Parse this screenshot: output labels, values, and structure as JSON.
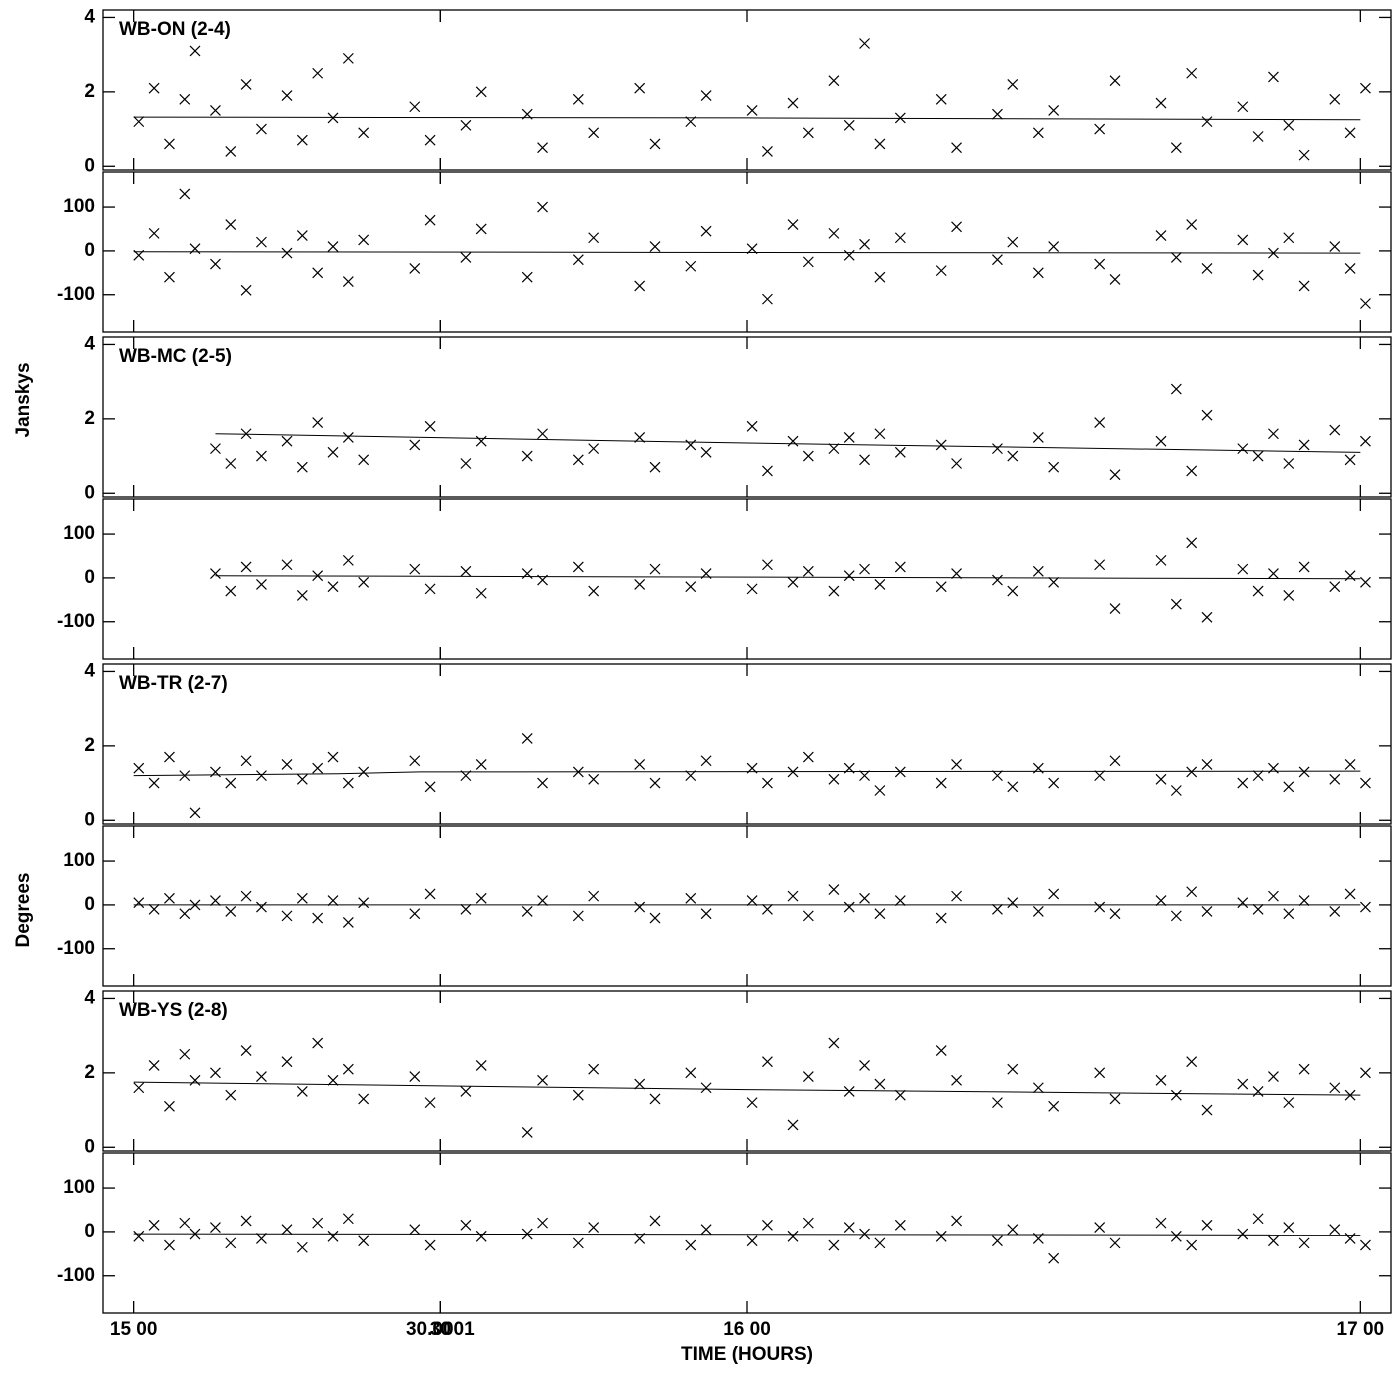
{
  "x_axis": {
    "xlim": [
      -3,
      123
    ],
    "xticks": [
      {
        "value": 0,
        "label": "15 00"
      },
      30,
      {
        "value": 60,
        "label": "16 00"
      },
      30.0001,
      {
        "value": 120,
        "label": "17 00"
      }
    ],
    "label": "TIME (HOURS)"
  },
  "ylabel_amplitude": "Janskys",
  "ylabel_phase": "Degrees",
  "chart_data": [
    {
      "type": "scatter",
      "label": "WB-ON (2-4)",
      "x": [
        0.5,
        2,
        3.5,
        5,
        6,
        8,
        9.5,
        11,
        12.5,
        15,
        16.5,
        18,
        19.5,
        21,
        22.5,
        27.5,
        29,
        32.5,
        34,
        38.5,
        40,
        43.5,
        45,
        49.5,
        51,
        54.5,
        56,
        60.5,
        62,
        64.5,
        66,
        68.5,
        70,
        71.5,
        73,
        75,
        79,
        80.5,
        84.5,
        86,
        88.5,
        90,
        94.5,
        96,
        100.5,
        102,
        103.5,
        105,
        108.5,
        110,
        111.5,
        113,
        114.5,
        117.5,
        119,
        120.5
      ],
      "amplitude": {
        "ylim": [
          -0.1,
          4.2
        ],
        "yticks": [
          0,
          2,
          4
        ],
        "values": [
          1.2,
          2.1,
          0.6,
          1.8,
          3.1,
          1.5,
          0.4,
          2.2,
          1.0,
          1.9,
          0.7,
          2.5,
          1.3,
          2.9,
          0.9,
          1.6,
          0.7,
          1.1,
          2.0,
          1.4,
          0.5,
          1.8,
          0.9,
          2.1,
          0.6,
          1.2,
          1.9,
          1.5,
          0.4,
          1.7,
          0.9,
          2.3,
          1.1,
          3.3,
          0.6,
          1.3,
          1.8,
          0.5,
          1.4,
          2.2,
          0.9,
          1.5,
          1.0,
          2.3,
          1.7,
          0.5,
          2.5,
          1.2,
          1.6,
          0.8,
          2.4,
          1.1,
          0.3,
          1.8,
          0.9,
          2.1
        ],
        "fit_x": [
          0,
          60,
          120
        ],
        "fit_values": [
          1.32,
          1.3,
          1.25
        ]
      },
      "phase": {
        "ylim": [
          -185,
          180
        ],
        "yticks": [
          -100,
          0,
          100
        ],
        "values": [
          -10,
          40,
          -60,
          130,
          5,
          -30,
          60,
          -90,
          20,
          -5,
          35,
          -50,
          10,
          -70,
          25,
          -40,
          70,
          -15,
          50,
          -60,
          100,
          -20,
          30,
          -80,
          10,
          -35,
          45,
          5,
          -110,
          60,
          -25,
          40,
          -10,
          15,
          -60,
          30,
          -45,
          55,
          -20,
          20,
          -50,
          10,
          -30,
          -65,
          35,
          -15,
          60,
          -40,
          25,
          -55,
          -5,
          30,
          -80,
          10,
          -40,
          -120
        ],
        "fit_x": [
          0,
          120
        ],
        "fit_values": [
          -2,
          -5
        ]
      }
    },
    {
      "type": "scatter",
      "label": "WB-MC (2-5)",
      "x": [
        8,
        9.5,
        11,
        12.5,
        15,
        16.5,
        18,
        19.5,
        21,
        22.5,
        27.5,
        29,
        32.5,
        34,
        38.5,
        40,
        43.5,
        45,
        49.5,
        51,
        54.5,
        56,
        60.5,
        62,
        64.5,
        66,
        68.5,
        70,
        71.5,
        73,
        75,
        79,
        80.5,
        84.5,
        86,
        88.5,
        90,
        94.5,
        96,
        100.5,
        102,
        103.5,
        105,
        108.5,
        110,
        111.5,
        113,
        114.5,
        117.5,
        119,
        120.5
      ],
      "amplitude": {
        "ylim": [
          -0.1,
          4.2
        ],
        "yticks": [
          0,
          2,
          4
        ],
        "values": [
          1.2,
          0.8,
          1.6,
          1.0,
          1.4,
          0.7,
          1.9,
          1.1,
          1.5,
          0.9,
          1.3,
          1.8,
          0.8,
          1.4,
          1.0,
          1.6,
          0.9,
          1.2,
          1.5,
          0.7,
          1.3,
          1.1,
          1.8,
          0.6,
          1.4,
          1.0,
          1.2,
          1.5,
          0.9,
          1.6,
          1.1,
          1.3,
          0.8,
          1.2,
          1.0,
          1.5,
          0.7,
          1.9,
          0.5,
          1.4,
          2.8,
          0.6,
          2.1,
          1.2,
          1.0,
          1.6,
          0.8,
          1.3,
          1.7,
          0.9,
          1.4
        ],
        "fit_x": [
          8,
          60,
          120
        ],
        "fit_values": [
          1.6,
          1.35,
          1.1
        ]
      },
      "phase": {
        "ylim": [
          -185,
          180
        ],
        "yticks": [
          -100,
          0,
          100
        ],
        "values": [
          10,
          -30,
          25,
          -15,
          30,
          -40,
          5,
          -20,
          40,
          -10,
          20,
          -25,
          15,
          -35,
          10,
          -5,
          25,
          -30,
          -15,
          20,
          -20,
          10,
          -25,
          30,
          -10,
          15,
          -30,
          5,
          20,
          -15,
          25,
          -20,
          10,
          -5,
          -30,
          15,
          -10,
          30,
          -70,
          40,
          -60,
          80,
          -90,
          20,
          -30,
          10,
          -40,
          25,
          -20,
          5,
          -10
        ],
        "fit_x": [
          8,
          120
        ],
        "fit_values": [
          5,
          -2
        ]
      }
    },
    {
      "type": "scatter",
      "label": "WB-TR (2-7)",
      "x": [
        0.5,
        2,
        3.5,
        5,
        6,
        8,
        9.5,
        11,
        12.5,
        15,
        16.5,
        18,
        19.5,
        21,
        22.5,
        27.5,
        29,
        32.5,
        34,
        38.5,
        40,
        43.5,
        45,
        49.5,
        51,
        54.5,
        56,
        60.5,
        62,
        64.5,
        66,
        68.5,
        70,
        71.5,
        73,
        75,
        79,
        80.5,
        84.5,
        86,
        88.5,
        90,
        94.5,
        96,
        100.5,
        102,
        103.5,
        105,
        108.5,
        110,
        111.5,
        113,
        114.5,
        117.5,
        119,
        120.5
      ],
      "amplitude": {
        "ylim": [
          -0.1,
          4.2
        ],
        "yticks": [
          0,
          2,
          4
        ],
        "values": [
          1.4,
          1.0,
          1.7,
          1.2,
          0.2,
          1.3,
          1.0,
          1.6,
          1.2,
          1.5,
          1.1,
          1.4,
          1.7,
          1.0,
          1.3,
          1.6,
          0.9,
          1.2,
          1.5,
          2.2,
          1.0,
          1.3,
          1.1,
          1.5,
          1.0,
          1.2,
          1.6,
          1.4,
          1.0,
          1.3,
          1.7,
          1.1,
          1.4,
          1.2,
          0.8,
          1.3,
          1.0,
          1.5,
          1.2,
          0.9,
          1.4,
          1.0,
          1.2,
          1.6,
          1.1,
          0.8,
          1.3,
          1.5,
          1.0,
          1.2,
          1.4,
          0.9,
          1.3,
          1.1,
          1.5,
          1.0
        ],
        "fit_x": [
          0,
          20,
          28,
          120
        ],
        "fit_values": [
          1.2,
          1.25,
          1.3,
          1.32
        ]
      },
      "phase": {
        "ylim": [
          -185,
          180
        ],
        "yticks": [
          -100,
          0,
          100
        ],
        "values": [
          5,
          -10,
          15,
          -20,
          0,
          10,
          -15,
          20,
          -5,
          -25,
          15,
          -30,
          10,
          -40,
          5,
          -20,
          25,
          -10,
          15,
          -15,
          10,
          -25,
          20,
          -5,
          -30,
          15,
          -20,
          10,
          -10,
          20,
          -25,
          35,
          -5,
          15,
          -20,
          10,
          -30,
          20,
          -10,
          5,
          -15,
          25,
          -5,
          -20,
          10,
          -25,
          30,
          -15,
          5,
          -10,
          20,
          -20,
          10,
          -15,
          25,
          -5
        ],
        "fit_x": [
          0,
          120
        ],
        "fit_values": [
          0,
          0
        ]
      }
    },
    {
      "type": "scatter",
      "label": "WB-YS (2-8)",
      "x": [
        0.5,
        2,
        3.5,
        5,
        6,
        8,
        9.5,
        11,
        12.5,
        15,
        16.5,
        18,
        19.5,
        21,
        22.5,
        27.5,
        29,
        32.5,
        34,
        38.5,
        40,
        43.5,
        45,
        49.5,
        51,
        54.5,
        56,
        60.5,
        62,
        64.5,
        66,
        68.5,
        70,
        71.5,
        73,
        75,
        79,
        80.5,
        84.5,
        86,
        88.5,
        90,
        94.5,
        96,
        100.5,
        102,
        103.5,
        105,
        108.5,
        110,
        111.5,
        113,
        114.5,
        117.5,
        119,
        120.5
      ],
      "amplitude": {
        "ylim": [
          -0.1,
          4.2
        ],
        "yticks": [
          0,
          2,
          4
        ],
        "values": [
          1.6,
          2.2,
          1.1,
          2.5,
          1.8,
          2.0,
          1.4,
          2.6,
          1.9,
          2.3,
          1.5,
          2.8,
          1.8,
          2.1,
          1.3,
          1.9,
          1.2,
          1.5,
          2.2,
          0.4,
          1.8,
          1.4,
          2.1,
          1.7,
          1.3,
          2.0,
          1.6,
          1.2,
          2.3,
          0.6,
          1.9,
          2.8,
          1.5,
          2.2,
          1.7,
          1.4,
          2.6,
          1.8,
          1.2,
          2.1,
          1.6,
          1.1,
          2.0,
          1.3,
          1.8,
          1.4,
          2.3,
          1.0,
          1.7,
          1.5,
          1.9,
          1.2,
          2.1,
          1.6,
          1.4,
          2.0
        ],
        "fit_x": [
          0,
          60,
          120
        ],
        "fit_values": [
          1.75,
          1.55,
          1.4
        ]
      },
      "phase": {
        "ylim": [
          -185,
          180
        ],
        "yticks": [
          -100,
          0,
          100
        ],
        "values": [
          -10,
          15,
          -30,
          20,
          -5,
          10,
          -25,
          25,
          -15,
          5,
          -35,
          20,
          -10,
          30,
          -20,
          5,
          -30,
          15,
          -10,
          -5,
          20,
          -25,
          10,
          -15,
          25,
          -30,
          5,
          -20,
          15,
          -10,
          20,
          -30,
          10,
          -5,
          -25,
          15,
          -10,
          25,
          -20,
          5,
          -15,
          -60,
          10,
          -25,
          20,
          -10,
          -30,
          15,
          -5,
          30,
          -20,
          10,
          -25,
          5,
          -15,
          -30
        ],
        "fit_x": [
          0,
          120
        ],
        "fit_values": [
          -5,
          -8
        ]
      }
    }
  ]
}
